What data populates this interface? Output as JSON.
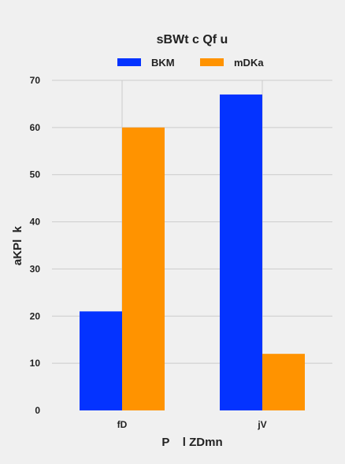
{
  "chart_data": {
    "type": "bar",
    "title": "sBWt c Qf u",
    "xlabel": "P    l ZDmn",
    "ylabel": "aKPl  k",
    "categories": [
      "fD",
      "jV"
    ],
    "series": [
      {
        "name": "BKM",
        "values": [
          21,
          67
        ],
        "color": "#0433ff"
      },
      {
        "name": "mDKa",
        "values": [
          60,
          12
        ],
        "color": "#ff9300"
      }
    ],
    "ylim": [
      0,
      70
    ],
    "yticks": [
      0,
      10,
      20,
      30,
      40,
      50,
      60,
      70
    ],
    "grid": true,
    "legend_position": "top-center"
  }
}
